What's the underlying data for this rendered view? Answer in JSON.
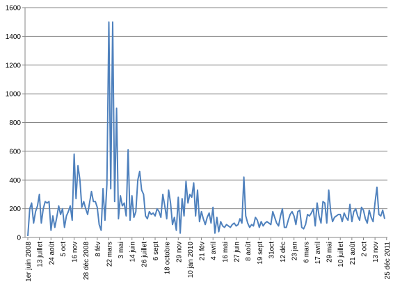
{
  "chart_data": {
    "type": "line",
    "title": "",
    "xlabel": "",
    "ylabel": "",
    "ylim": [
      0,
      1600
    ],
    "grid": "horizontal",
    "legend": "none",
    "line_color": "#4f81bd",
    "grid_color": "#868686",
    "y_ticks": [
      "0",
      "200",
      "400",
      "600",
      "800",
      "1000",
      "1200",
      "1400",
      "1600"
    ],
    "x_tick_labels": [
      "1er juin 2008",
      "13 juillet",
      "24 août",
      "5 oct",
      "16 nov",
      "28 déc 2008",
      "8 fév",
      "22 mars",
      "3 mai",
      "14 juin",
      "26 juillet",
      "6 sept",
      "18 octobre",
      "29 nov",
      "10 jan 2010",
      "21 fév",
      "4 avril",
      "16 mai",
      "27 juin",
      "8 août",
      "19 sept",
      "31oct",
      "12 déc",
      "23 jan",
      "6 mars",
      "17 avril",
      "29 mai",
      "10 juillet",
      "21 août",
      "2 oct",
      "13 nov",
      "25 déc 2011"
    ],
    "x_tick_positions": [
      0,
      6,
      12,
      18,
      24,
      30,
      36,
      42,
      48,
      54,
      60,
      66,
      72,
      78,
      84,
      90,
      96,
      102,
      108,
      114,
      120,
      126,
      132,
      138,
      144,
      150,
      156,
      162,
      168,
      174,
      180,
      186
    ],
    "values": [
      10,
      200,
      240,
      100,
      180,
      220,
      300,
      100,
      200,
      250,
      240,
      250,
      50,
      150,
      70,
      140,
      220,
      160,
      200,
      70,
      150,
      180,
      220,
      120,
      580,
      270,
      500,
      400,
      210,
      250,
      200,
      160,
      240,
      320,
      250,
      250,
      210,
      90,
      50,
      340,
      120,
      370,
      1500,
      340,
      1500,
      250,
      900,
      130,
      290,
      220,
      240,
      150,
      610,
      120,
      290,
      140,
      180,
      400,
      460,
      330,
      300,
      150,
      130,
      180,
      160,
      170,
      150,
      200,
      180,
      140,
      300,
      220,
      130,
      330,
      240,
      90,
      140,
      50,
      280,
      30,
      270,
      150,
      390,
      240,
      300,
      280,
      380,
      150,
      330,
      110,
      180,
      130,
      90,
      140,
      170,
      100,
      210,
      30,
      140,
      40,
      110,
      80,
      70,
      90,
      80,
      70,
      90,
      100,
      80,
      90,
      130,
      100,
      420,
      150,
      100,
      70,
      90,
      80,
      140,
      120,
      70,
      110,
      80,
      100,
      110,
      100,
      90,
      180,
      140,
      100,
      80,
      150,
      200,
      70,
      70,
      120,
      160,
      180,
      150,
      90,
      180,
      190,
      70,
      60,
      90,
      160,
      150,
      170,
      200,
      80,
      240,
      150,
      100,
      250,
      240,
      100,
      330,
      180,
      110,
      140,
      150,
      160,
      160,
      110,
      170,
      140,
      120,
      230,
      110,
      180,
      200,
      150,
      120,
      210,
      190,
      130,
      100,
      190,
      140,
      110,
      240,
      350,
      160,
      150,
      190,
      130
    ]
  }
}
